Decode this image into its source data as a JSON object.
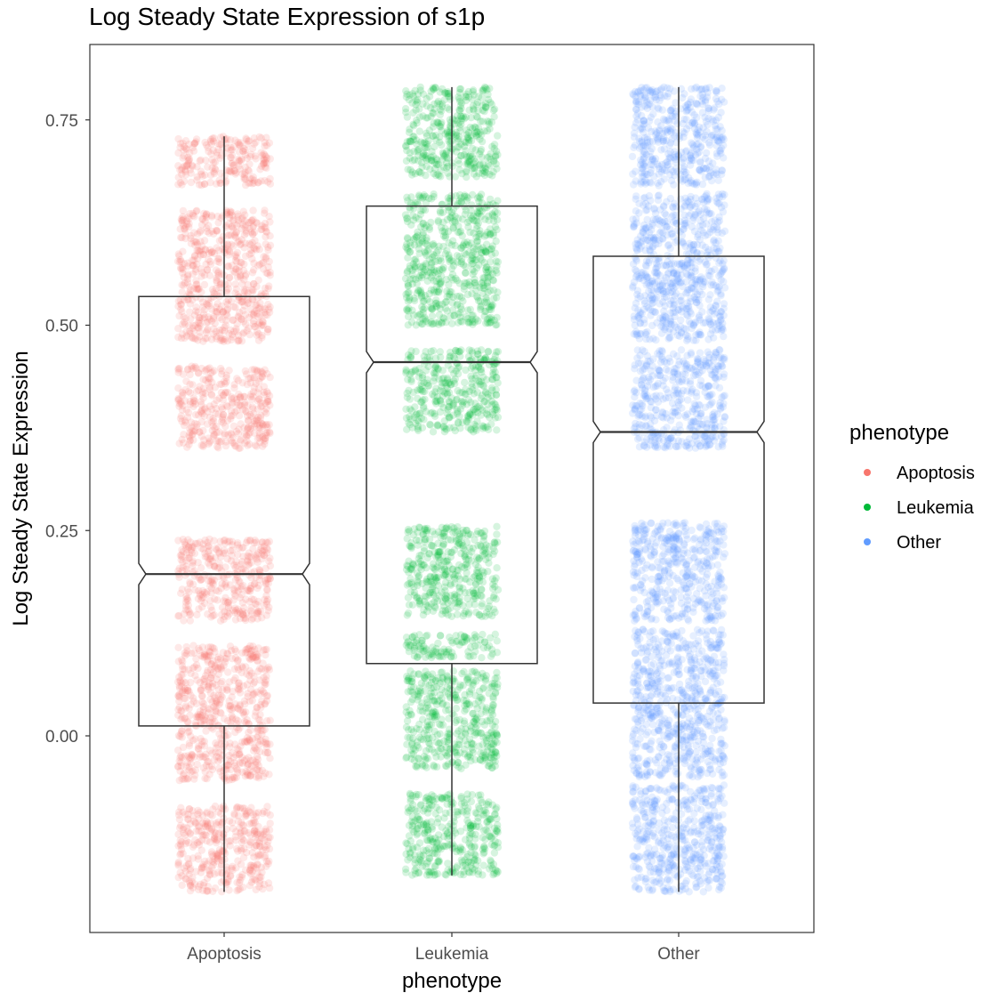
{
  "chart_data": {
    "type": "boxplot",
    "title": "Log Steady State Expression of s1p",
    "xlabel": "phenotype",
    "ylabel": "Log Steady State Expression",
    "ylim": [
      -0.2,
      0.85
    ],
    "y_ticks": [
      "0.00",
      "0.25",
      "0.50",
      "0.75"
    ],
    "y_tick_values": [
      0,
      0.25,
      0.5,
      0.75
    ],
    "categories": [
      "Apoptosis",
      "Leukemia",
      "Other"
    ],
    "legend": {
      "title": "phenotype",
      "position": "right",
      "entries": [
        "Apoptosis",
        "Leukemia",
        "Other"
      ]
    },
    "series": [
      {
        "name": "Apoptosis",
        "color": "#F8766D",
        "box": {
          "min": -0.19,
          "q1": 0.012,
          "median": 0.197,
          "q3": 0.535,
          "max": 0.73
        },
        "point_bands": [
          [
            -0.19,
            -0.085
          ],
          [
            -0.055,
            0.11
          ],
          [
            0.14,
            0.24
          ],
          [
            0.35,
            0.45
          ],
          [
            0.48,
            0.64
          ],
          [
            0.67,
            0.73
          ]
        ]
      },
      {
        "name": "Leukemia",
        "color": "#00BA38",
        "box": {
          "min": -0.17,
          "q1": 0.088,
          "median": 0.455,
          "q3": 0.645,
          "max": 0.79
        },
        "point_bands": [
          [
            -0.17,
            -0.07
          ],
          [
            -0.04,
            0.08
          ],
          [
            0.095,
            0.125
          ],
          [
            0.145,
            0.255
          ],
          [
            0.37,
            0.47
          ],
          [
            0.5,
            0.66
          ],
          [
            0.68,
            0.79
          ]
        ]
      },
      {
        "name": "Other",
        "color": "#619CFF",
        "box": {
          "min": -0.19,
          "q1": 0.04,
          "median": 0.37,
          "q3": 0.584,
          "max": 0.79
        },
        "point_bands": [
          [
            -0.19,
            -0.06
          ],
          [
            -0.05,
            0.13
          ],
          [
            0.14,
            0.26
          ],
          [
            0.35,
            0.47
          ],
          [
            0.48,
            0.66
          ],
          [
            0.67,
            0.79
          ]
        ]
      }
    ],
    "grid": false
  }
}
